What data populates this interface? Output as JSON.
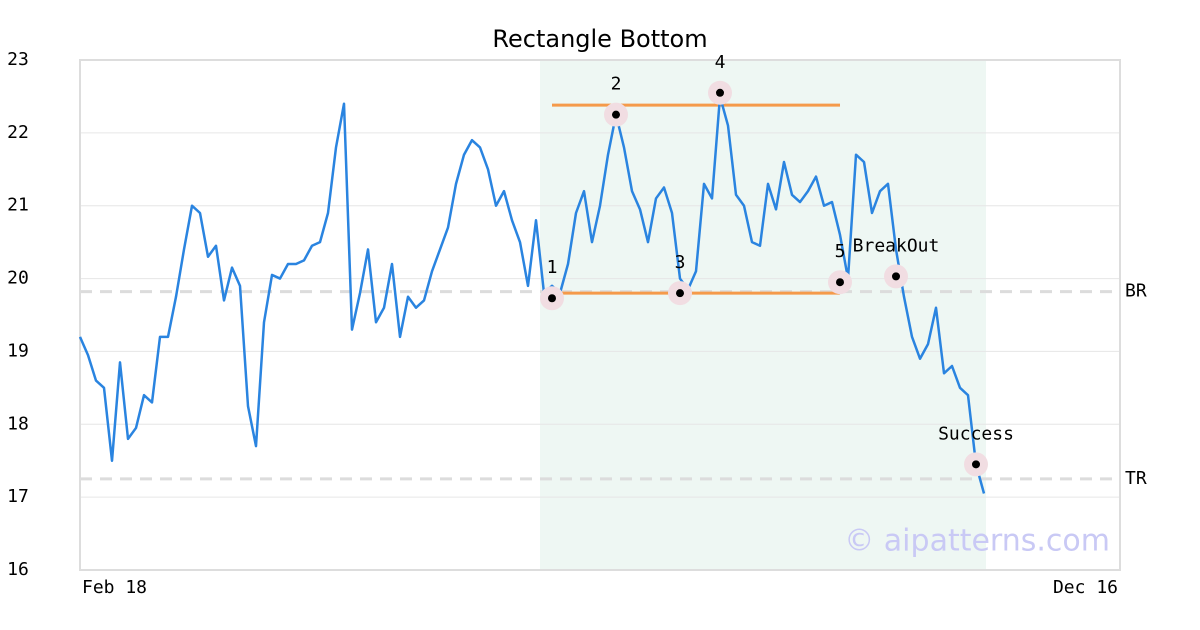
{
  "chart_data": {
    "type": "line",
    "title": "Rectangle Bottom",
    "categories": [
      "Feb 18",
      null,
      null,
      null,
      null,
      null,
      null,
      null,
      null,
      null,
      null,
      null,
      null,
      null,
      null,
      null,
      null,
      null,
      null,
      null,
      null,
      null,
      null,
      null,
      null,
      null,
      null,
      null,
      null,
      null,
      null,
      null,
      null,
      null,
      null,
      null,
      null,
      null,
      null,
      null,
      null,
      null,
      null,
      null,
      null,
      null,
      null,
      null,
      null,
      null,
      null,
      null,
      null,
      null,
      null,
      null,
      null,
      null,
      null,
      null,
      null,
      null,
      null,
      null,
      null,
      null,
      null,
      null,
      null,
      null,
      null,
      null,
      null,
      null,
      null,
      null,
      null,
      null,
      null,
      null,
      null,
      null,
      null,
      null,
      null,
      null,
      null,
      null,
      null,
      null,
      null,
      null,
      null,
      null,
      null,
      null,
      null,
      null,
      null,
      null,
      null,
      null,
      null,
      null,
      null,
      null,
      null,
      null,
      null,
      null,
      null,
      null,
      null,
      null,
      null,
      null,
      null,
      null,
      null,
      null,
      null,
      null,
      null,
      null,
      null,
      null,
      null,
      null,
      null,
      null,
      "Dec 16"
    ],
    "series": [
      {
        "color": "#2a84e0",
        "values": [
          19.2,
          18.95,
          18.6,
          18.5,
          17.5,
          18.85,
          17.8,
          17.95,
          18.4,
          18.3,
          19.2,
          19.2,
          19.75,
          20.4,
          21.0,
          20.9,
          20.3,
          20.45,
          19.7,
          20.15,
          19.9,
          18.25,
          17.7,
          19.4,
          20.05,
          20.0,
          20.2,
          20.2,
          20.25,
          20.45,
          20.5,
          20.9,
          21.8,
          22.4,
          19.3,
          19.8,
          20.4,
          19.4,
          19.6,
          20.2,
          19.2,
          19.75,
          19.6,
          19.7,
          20.1,
          20.4,
          20.7,
          21.3,
          21.7,
          21.9,
          21.8,
          21.5,
          21.0,
          21.2,
          20.8,
          20.5,
          19.9,
          20.8,
          19.8,
          19.9,
          19.8,
          20.2,
          20.9,
          21.2,
          20.5,
          21.0,
          21.7,
          22.25,
          21.8,
          21.2,
          20.95,
          20.5,
          21.1,
          21.25,
          20.9,
          20.0,
          19.85,
          20.1,
          21.3,
          21.1,
          22.5,
          22.1,
          21.15,
          21.0,
          20.5,
          20.45,
          21.3,
          20.95,
          21.6,
          21.15,
          21.05,
          21.2,
          21.4,
          21.0,
          21.05,
          20.6,
          20.0,
          21.7,
          21.6,
          20.9,
          21.2,
          21.3,
          20.4,
          19.75,
          19.2,
          18.9,
          19.1,
          19.6,
          18.7,
          18.8,
          18.5,
          18.4,
          17.45,
          17.05,
          null,
          null,
          null,
          null,
          null,
          null,
          null,
          null,
          null,
          null,
          null,
          null,
          null,
          null,
          null,
          null,
          null
        ]
      }
    ],
    "ylim": [
      16,
      23
    ],
    "yticks": [
      16,
      17,
      18,
      19,
      20,
      21,
      22,
      23
    ],
    "grid": true,
    "highlight_range": [
      57.5,
      113.25
    ],
    "levels": [
      {
        "value": 22.38,
        "from": 59,
        "to": 95,
        "color": "#f59a4a"
      },
      {
        "value": 19.8,
        "from": 59,
        "to": 95,
        "color": "#f59a4a"
      }
    ],
    "reference_lines": [
      {
        "label": "BR",
        "value": 19.82
      },
      {
        "label": "TR",
        "value": 17.25
      }
    ],
    "markers": [
      {
        "label": "1",
        "point": 59,
        "value": 19.73
      },
      {
        "label": "2",
        "point": 67,
        "value": 22.25
      },
      {
        "label": "3",
        "point": 75,
        "value": 19.8
      },
      {
        "label": "4",
        "point": 80,
        "value": 22.55
      },
      {
        "label": "5",
        "point": 95,
        "value": 19.95
      },
      {
        "label": "BreakOut",
        "point": 102,
        "value": 20.03
      },
      {
        "label": "Success",
        "point": 112,
        "value": 17.45
      }
    ],
    "watermark": "© aipatterns.com"
  }
}
